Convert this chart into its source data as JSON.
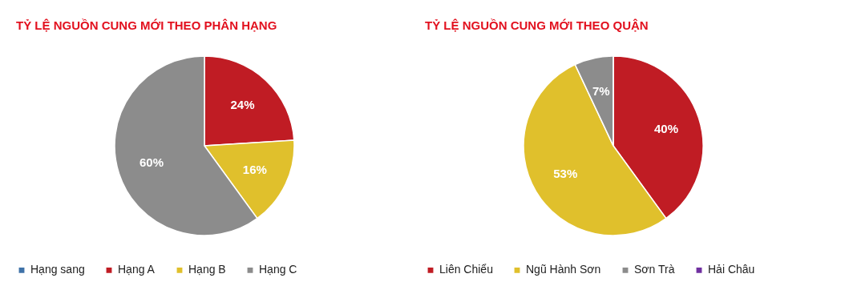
{
  "chart_data": [
    {
      "type": "pie",
      "title": "TỶ LỆ NGUỒN CUNG MỚI THEO PHÂN HẠNG",
      "categories": [
        "Hạng sang",
        "Hạng A",
        "Hạng B",
        "Hạng C"
      ],
      "values": [
        0,
        24,
        16,
        60
      ],
      "colors": [
        "#3f72a8",
        "#c01c24",
        "#e0c02c",
        "#8c8c8c"
      ],
      "value_labels": [
        null,
        "24%",
        "16%",
        "60%"
      ],
      "legend": "bottom"
    },
    {
      "type": "pie",
      "title": "TỶ LỆ NGUỒN CUNG MỚI THEO QUẬN",
      "categories": [
        "Liên Chiểu",
        "Ngũ Hành Sơn",
        "Sơn Trà",
        "Hải Châu"
      ],
      "values": [
        40,
        53,
        7,
        0
      ],
      "colors": [
        "#c01c24",
        "#e0c02c",
        "#8c8c8c",
        "#7030a0"
      ],
      "value_labels": [
        "40%",
        "53%",
        "7%",
        null
      ],
      "legend": "bottom"
    }
  ]
}
